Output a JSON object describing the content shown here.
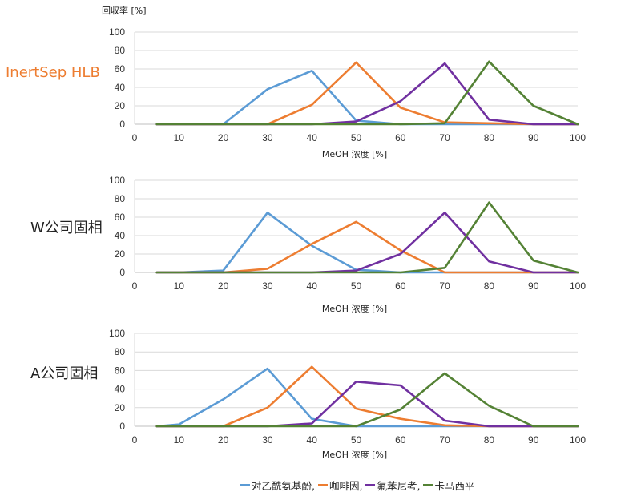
{
  "chart_data": [
    {
      "type": "line",
      "panel_label": "InertSep HLB",
      "panel_label_color": "#ED7D31",
      "ylabel": "回収率 [%]",
      "xlabel": "MeOH 浓度 [%]",
      "x": [
        5,
        10,
        20,
        30,
        40,
        50,
        60,
        70,
        80,
        90,
        100
      ],
      "x_ticks": [
        0,
        10,
        20,
        30,
        40,
        50,
        60,
        70,
        80,
        90,
        100
      ],
      "y_ticks": [
        0,
        20,
        40,
        60,
        80,
        100
      ],
      "xlim": [
        0,
        100
      ],
      "ylim": [
        0,
        100
      ],
      "grid": true,
      "series": [
        {
          "name": "对乙酰氨基酚",
          "color": "#5B9BD5",
          "values": [
            0,
            0,
            0,
            38,
            58,
            4,
            0,
            0,
            0,
            0,
            0
          ]
        },
        {
          "name": "咖啡因",
          "color": "#ED7D31",
          "values": [
            0,
            0,
            0,
            0,
            21,
            67,
            18,
            2,
            1,
            0,
            0
          ]
        },
        {
          "name": "氟苯尼考",
          "color": "#7030A0",
          "values": [
            0,
            0,
            0,
            0,
            0,
            3,
            25,
            66,
            5,
            0,
            0
          ]
        },
        {
          "name": "卡马西平",
          "color": "#548235",
          "values": [
            0,
            0,
            0,
            0,
            0,
            0,
            0,
            1,
            68,
            20,
            0
          ]
        }
      ]
    },
    {
      "type": "line",
      "panel_label": "W公司固相",
      "panel_label_color": "#222222",
      "xlabel": "MeOH 浓度 [%]",
      "x": [
        5,
        10,
        20,
        30,
        40,
        50,
        60,
        70,
        80,
        90,
        100
      ],
      "x_ticks": [
        0,
        10,
        20,
        30,
        40,
        50,
        60,
        70,
        80,
        90,
        100
      ],
      "y_ticks": [
        0,
        20,
        40,
        60,
        80,
        100
      ],
      "xlim": [
        0,
        100
      ],
      "ylim": [
        0,
        100
      ],
      "grid": true,
      "series": [
        {
          "name": "对乙酰氨基酚",
          "color": "#5B9BD5",
          "values": [
            0,
            0,
            2,
            65,
            29,
            3,
            0,
            0,
            0,
            0,
            0
          ]
        },
        {
          "name": "咖啡因",
          "color": "#ED7D31",
          "values": [
            0,
            0,
            0,
            4,
            31,
            55,
            24,
            0,
            0,
            0,
            0
          ]
        },
        {
          "name": "氟苯尼考",
          "color": "#7030A0",
          "values": [
            0,
            0,
            0,
            0,
            0,
            2,
            20,
            65,
            12,
            0,
            0
          ]
        },
        {
          "name": "卡马西平",
          "color": "#548235",
          "values": [
            0,
            0,
            0,
            0,
            0,
            0,
            0,
            5,
            76,
            13,
            0
          ]
        }
      ]
    },
    {
      "type": "line",
      "panel_label": "A公司固相",
      "panel_label_color": "#222222",
      "xlabel": "MeOH 浓度 [%]",
      "x": [
        5,
        10,
        20,
        30,
        40,
        50,
        60,
        70,
        80,
        90,
        100
      ],
      "x_ticks": [
        0,
        10,
        20,
        30,
        40,
        50,
        60,
        70,
        80,
        90,
        100
      ],
      "y_ticks": [
        0,
        20,
        40,
        60,
        80,
        100
      ],
      "xlim": [
        0,
        100
      ],
      "ylim": [
        0,
        100
      ],
      "grid": true,
      "series": [
        {
          "name": "对乙酰氨基酚",
          "color": "#5B9BD5",
          "values": [
            0,
            2,
            29,
            62,
            8,
            0,
            0,
            0,
            0,
            0,
            0
          ]
        },
        {
          "name": "咖啡因",
          "color": "#ED7D31",
          "values": [
            0,
            0,
            0,
            20,
            64,
            19,
            8,
            1,
            0,
            0,
            0
          ]
        },
        {
          "name": "氟苯尼考",
          "color": "#7030A0",
          "values": [
            0,
            0,
            0,
            0,
            3,
            48,
            44,
            6,
            0,
            0,
            0
          ]
        },
        {
          "name": "卡马西平",
          "color": "#548235",
          "values": [
            0,
            0,
            0,
            0,
            0,
            0,
            18,
            57,
            22,
            0,
            0
          ]
        }
      ]
    }
  ],
  "legend": [
    {
      "label": "对乙酰氨基酚,",
      "color": "#5B9BD5"
    },
    {
      "label": "咖啡因,",
      "color": "#ED7D31"
    },
    {
      "label": "氟苯尼考,",
      "color": "#7030A0"
    },
    {
      "label": "卡马西平",
      "color": "#548235"
    }
  ]
}
